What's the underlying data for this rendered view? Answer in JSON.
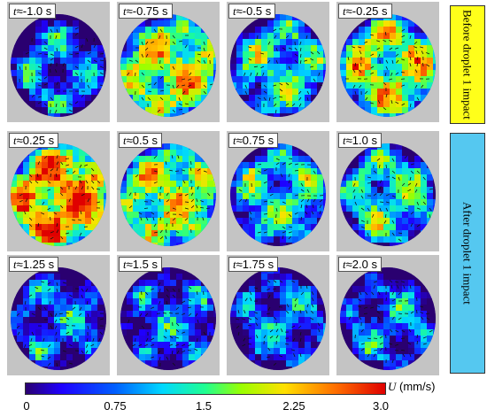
{
  "panels": [
    {
      "time": "≈-1.0 s",
      "tone": "low"
    },
    {
      "time": "≈-0.75 s",
      "tone": "high"
    },
    {
      "time": "≈-0.5 s",
      "tone": "mid"
    },
    {
      "time": "≈-0.25 s",
      "tone": "high"
    },
    {
      "time": "≈0.25 s",
      "tone": "max"
    },
    {
      "time": "≈0.5 s",
      "tone": "high"
    },
    {
      "time": "≈0.75 s",
      "tone": "mid"
    },
    {
      "time": "≈1.0 s",
      "tone": "mid"
    },
    {
      "time": "≈1.25 s",
      "tone": "low"
    },
    {
      "time": "≈1.5 s",
      "tone": "low"
    },
    {
      "time": "≈1.75 s",
      "tone": "low"
    },
    {
      "time": "≈2.0 s",
      "tone": "low"
    }
  ],
  "time_symbol": "t",
  "side_labels": {
    "before": "Before droplet 1 impact",
    "after": "After droplet 1 impact"
  },
  "side_colors": {
    "before": "#ffff1a",
    "after": "#55c8f0"
  },
  "colorbar": {
    "ticks": [
      "0",
      "0.75",
      "1.5",
      "2.25",
      "3.0"
    ],
    "variable": "U",
    "unit": " (mm/s)"
  }
}
